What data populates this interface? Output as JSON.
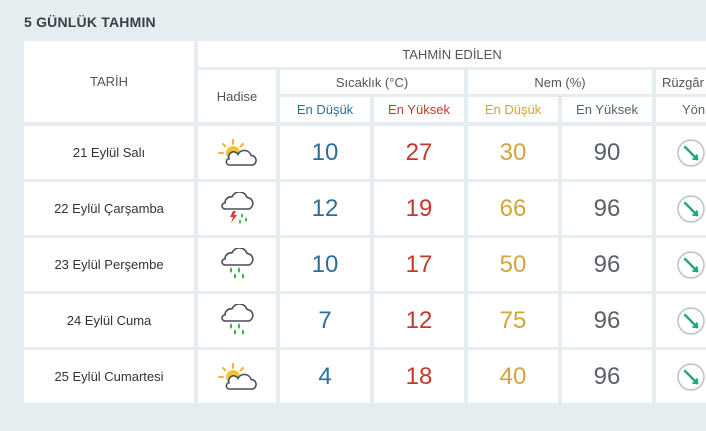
{
  "title": "5 GÜNLÜK TAHMIN",
  "header": {
    "forecast_group": "TAHMİN EDİLEN",
    "date_col": "TARİH",
    "event_col": "Hadise",
    "temp_group": "Sıcaklık (°C)",
    "humidity_group": "Nem (%)",
    "wind_group": "Rüzgâr",
    "temp_low": "En Düşük",
    "temp_high": "En Yüksek",
    "hum_low": "En Düşük",
    "hum_high": "En Yüksek",
    "wind_dir": "Yön"
  },
  "colors": {
    "low": "#2c6e9b",
    "high": "#c0392b",
    "hum_low": "#d4a43a",
    "hum_high": "#5a6068",
    "arrow": "#2aa37a"
  },
  "rows": [
    {
      "date": "21 Eylül Salı",
      "icon": "partly-cloudy-icon",
      "temp_low": "10",
      "temp_high": "27",
      "hum_low": "30",
      "hum_high": "90"
    },
    {
      "date": "22 Eylül Çarşamba",
      "icon": "thunderstorm-icon",
      "temp_low": "12",
      "temp_high": "19",
      "hum_low": "66",
      "hum_high": "96"
    },
    {
      "date": "23 Eylül Perşembe",
      "icon": "rain-icon",
      "temp_low": "10",
      "temp_high": "17",
      "hum_low": "50",
      "hum_high": "96"
    },
    {
      "date": "24 Eylül Cuma",
      "icon": "rain-icon",
      "temp_low": "7",
      "temp_high": "12",
      "hum_low": "75",
      "hum_high": "96"
    },
    {
      "date": "25 Eylül Cumartesi",
      "icon": "partly-cloudy-icon",
      "temp_low": "4",
      "temp_high": "18",
      "hum_low": "40",
      "hum_high": "96"
    }
  ]
}
